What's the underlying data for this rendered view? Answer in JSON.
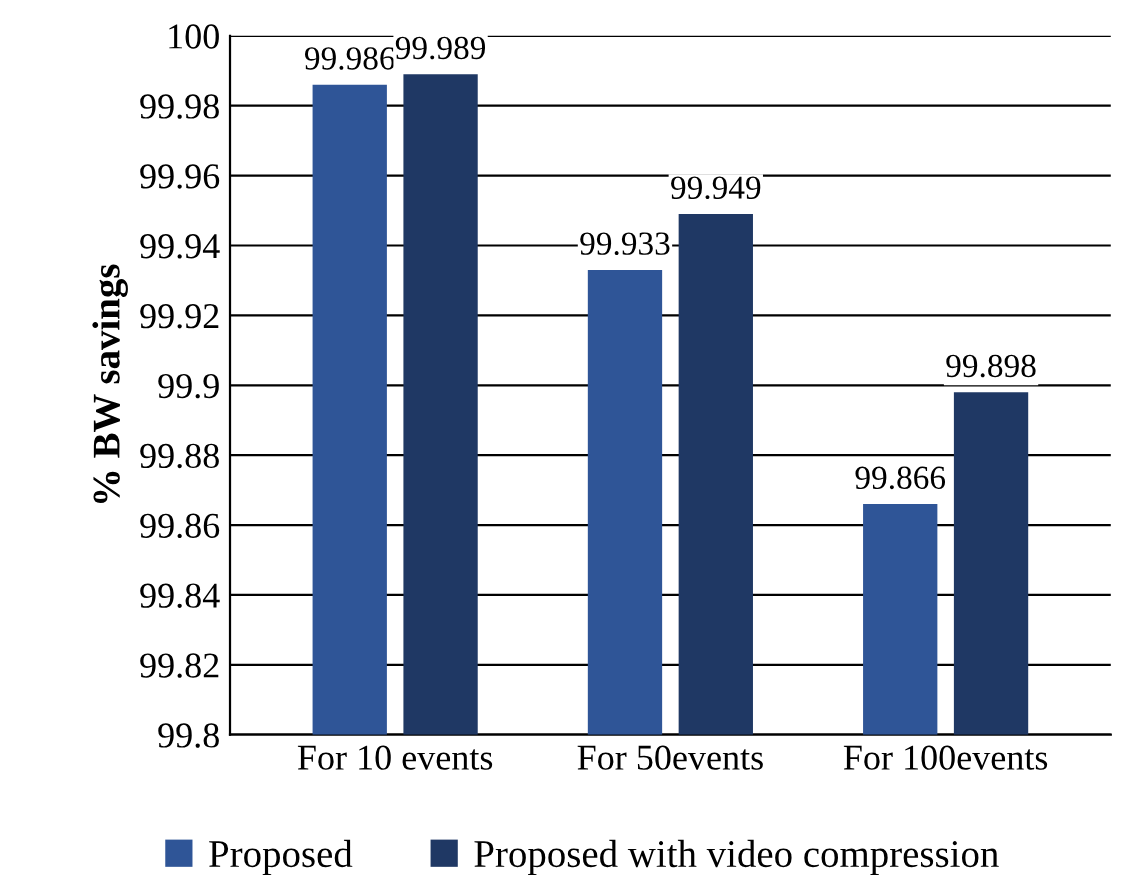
{
  "chart_data": {
    "type": "bar",
    "ylabel": "% BW savings",
    "categories": [
      "For 10 events",
      "For 50events",
      "For 100events"
    ],
    "series": [
      {
        "name": "Proposed",
        "color": "#2f5597",
        "values": [
          99.986,
          99.933,
          99.866
        ]
      },
      {
        "name": "Proposed with video compression",
        "color": "#1f3864",
        "values": [
          99.989,
          99.949,
          99.898
        ]
      }
    ],
    "ylim": [
      99.8,
      100
    ],
    "yticks": [
      99.8,
      99.82,
      99.84,
      99.86,
      99.88,
      99.9,
      99.92,
      99.94,
      99.96,
      99.98,
      100
    ],
    "grid": "y",
    "legend": "bottom",
    "data_labels": true
  }
}
